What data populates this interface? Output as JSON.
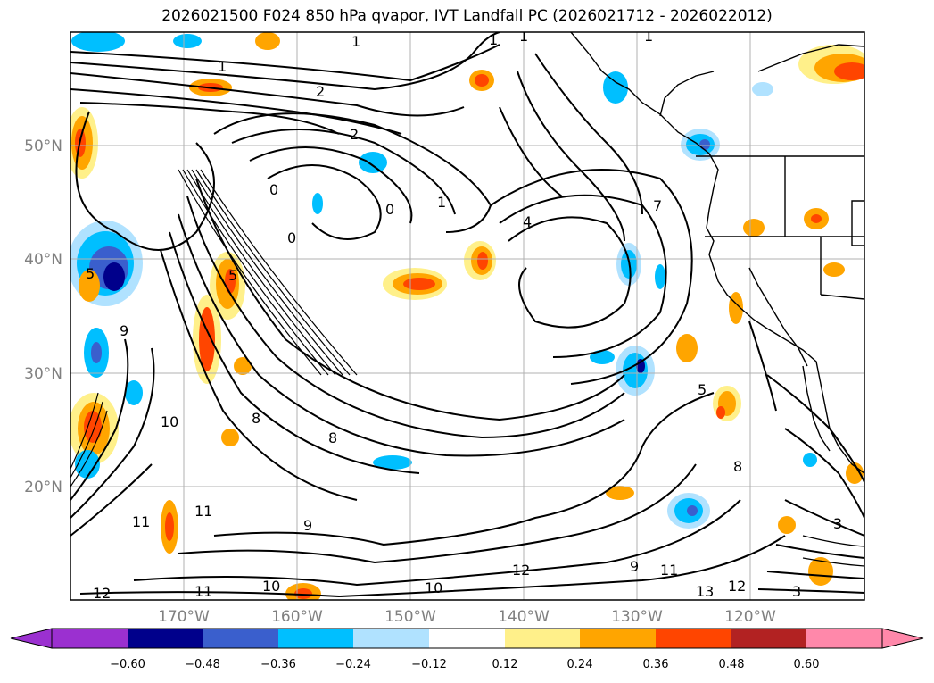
{
  "title": "2026021500 F024 850 hPa qvapor, IVT Landfall PC (2026021712 - 2026022012)",
  "map": {
    "lon_range": [
      -180,
      -110
    ],
    "lat_range": [
      10,
      60
    ],
    "lat_labels": [
      "50°N",
      "40°N",
      "30°N",
      "20°N"
    ],
    "lon_labels": [
      "170°W",
      "160°W",
      "150°W",
      "140°W",
      "130°W",
      "120°W"
    ],
    "contour_labels": [
      "1",
      "1",
      "1",
      "1",
      "1",
      "2",
      "2",
      "0",
      "0",
      "1",
      "0",
      "5",
      "5",
      "9",
      "8",
      "8",
      "10",
      "11",
      "11",
      "11",
      "12",
      "10",
      "10",
      "12",
      "9",
      "11",
      "13",
      "12",
      "4",
      "5",
      "7",
      "9",
      "8",
      "3",
      "3"
    ]
  },
  "colorbar": {
    "colors": [
      "#9b30d0",
      "#00008b",
      "#3a5fcd",
      "#00bfff",
      "#b0e2ff",
      "#ffffff",
      "#fff08a",
      "#ffa500",
      "#ff4500",
      "#b22222",
      "#ff88aa"
    ],
    "ticks": [
      "−0.60",
      "−0.48",
      "−0.36",
      "−0.24",
      "−0.12",
      "0.12",
      "0.24",
      "0.36",
      "0.48",
      "0.60"
    ]
  }
}
